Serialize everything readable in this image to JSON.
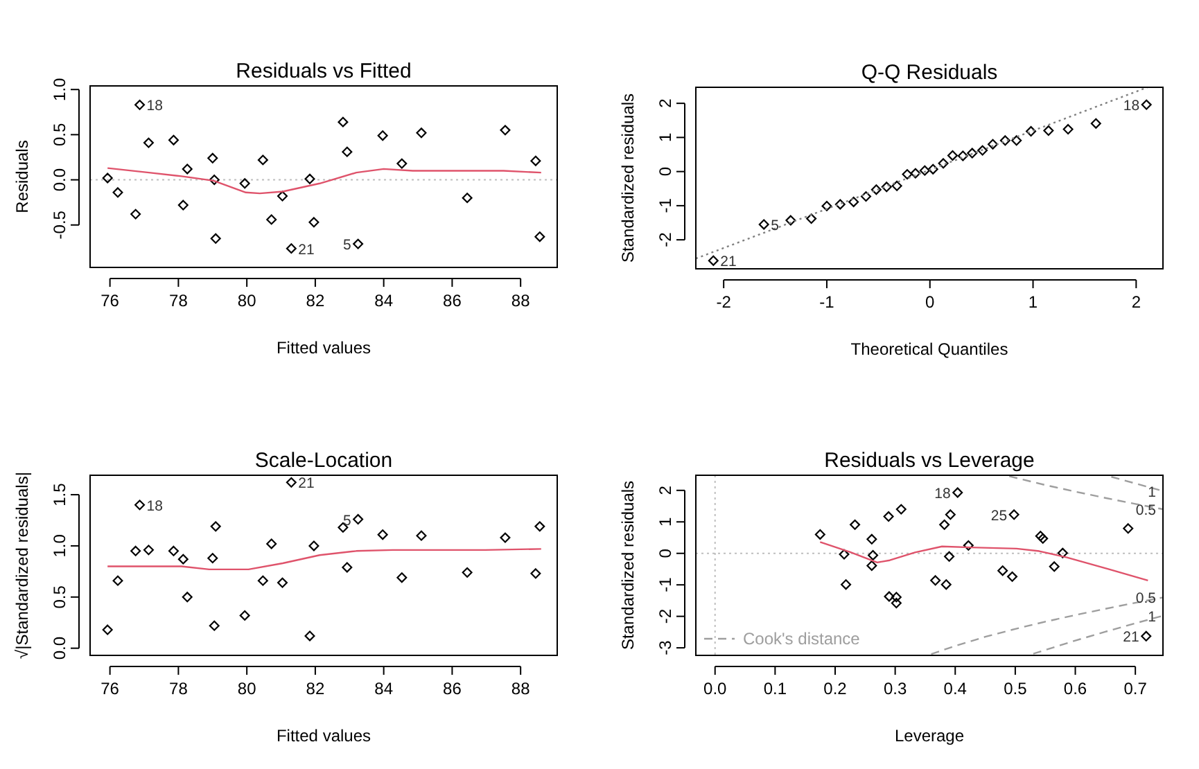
{
  "chart_data": [
    {
      "type": "scatter",
      "title": "Residuals vs Fitted",
      "xlabel": "Fitted values",
      "ylabel": "Residuals",
      "xlim": [
        75.42,
        89.07
      ],
      "ylim": [
        -0.97,
        1.04
      ],
      "xticks": [
        76,
        78,
        80,
        82,
        84,
        86,
        88
      ],
      "yticks": [
        {
          "value": -0.5,
          "label": "-0.5"
        },
        {
          "value": 0,
          "label": "0.0"
        },
        {
          "value": 0.5,
          "label": "0.5"
        },
        {
          "value": 1,
          "label": "1.0"
        }
      ],
      "series": [
        {
          "type": "scatter",
          "marker": "diamond",
          "color": "#000000",
          "x": [
            75.93,
            76.23,
            76.75,
            76.87,
            77.13,
            77.86,
            78.14,
            78.26,
            79.0,
            79.05,
            79.09,
            79.94,
            80.47,
            80.72,
            81.04,
            81.3,
            81.84,
            81.96,
            82.81,
            82.93,
            83.25,
            83.97,
            84.53,
            85.1,
            86.44,
            87.55,
            88.44,
            88.56
          ],
          "values": [
            0.02,
            -0.14,
            -0.38,
            0.83,
            0.41,
            0.44,
            -0.28,
            0.12,
            0.24,
            0.0,
            -0.65,
            -0.04,
            0.22,
            -0.44,
            -0.18,
            -0.76,
            0.01,
            -0.47,
            0.64,
            0.31,
            -0.71,
            0.49,
            0.18,
            0.52,
            -0.2,
            0.55,
            0.21,
            -0.63
          ]
        },
        {
          "type": "line",
          "marker": "none",
          "line_style": "solid",
          "color": "#df536b",
          "x": [
            75.93,
            77.14,
            78.09,
            79.03,
            79.97,
            80.38,
            81.05,
            82.13,
            83.2,
            84.0,
            84.85,
            86.2,
            87.5,
            88.6
          ],
          "values": [
            0.13,
            0.08,
            0.04,
            -0.01,
            -0.14,
            -0.15,
            -0.13,
            -0.04,
            0.08,
            0.12,
            0.1,
            0.1,
            0.1,
            0.08
          ]
        }
      ],
      "ref_lines": [
        {
          "axis": "y",
          "value": 0,
          "color": "#bebebe",
          "line_style": "dotted"
        }
      ],
      "annotations": [
        {
          "text": "18",
          "x": 76.87,
          "y": 0.83
        },
        {
          "text": "21",
          "x": 81.3,
          "y": -0.76
        },
        {
          "text": "5",
          "x": 83.25,
          "y": -0.71
        }
      ]
    },
    {
      "type": "scatter",
      "title": "Q-Q Residuals",
      "xlabel": "Theoretical Quantiles",
      "ylabel": "Standardized residuals",
      "xlim": [
        -2.27,
        2.26
      ],
      "ylim": [
        -2.85,
        2.47
      ],
      "xticks": [
        -2,
        -1,
        0,
        1,
        2
      ],
      "yticks": [
        -2,
        -1,
        0,
        1,
        2
      ],
      "series": [
        {
          "type": "scatter",
          "marker": "diamond",
          "color": "#000000",
          "x": [
            -2.1,
            -1.61,
            -1.35,
            -1.15,
            -1.0,
            -0.87,
            -0.74,
            -0.62,
            -0.52,
            -0.42,
            -0.32,
            -0.22,
            -0.14,
            -0.05,
            0.03,
            0.13,
            0.22,
            0.32,
            0.41,
            0.51,
            0.61,
            0.73,
            0.84,
            0.98,
            1.15,
            1.34,
            1.61,
            2.1
          ],
          "values": [
            -2.61,
            -1.55,
            -1.43,
            -1.38,
            -1.01,
            -0.96,
            -0.89,
            -0.73,
            -0.53,
            -0.45,
            -0.42,
            -0.08,
            -0.05,
            0.03,
            0.07,
            0.24,
            0.47,
            0.46,
            0.54,
            0.62,
            0.8,
            0.91,
            0.91,
            1.18,
            1.2,
            1.24,
            1.41,
            1.96
          ]
        },
        {
          "type": "line",
          "marker": "none",
          "line_style": "dotted",
          "color": "#808080",
          "x": [
            -2.27,
            2.11
          ],
          "values": [
            -2.55,
            2.47
          ]
        }
      ],
      "annotations": [
        {
          "text": "21",
          "x": -2.1,
          "y": -2.61
        },
        {
          "text": "5",
          "x": -1.61,
          "y": -1.55
        },
        {
          "text": "18",
          "x": 2.1,
          "y": 1.96
        }
      ]
    },
    {
      "type": "scatter",
      "title": "Scale-Location",
      "xlabel": "Fitted values",
      "ylabel": "√|Standardized residuals|",
      "xlim": [
        75.42,
        89.07
      ],
      "ylim": [
        -0.07,
        1.69
      ],
      "xticks": [
        76,
        78,
        80,
        82,
        84,
        86,
        88
      ],
      "yticks": [
        {
          "value": 0,
          "label": "0.0"
        },
        {
          "value": 0.5,
          "label": "0.5"
        },
        {
          "value": 1,
          "label": "1.0"
        },
        {
          "value": 1.5,
          "label": "1.5"
        }
      ],
      "series": [
        {
          "type": "scatter",
          "marker": "diamond",
          "color": "#000000",
          "x": [
            75.93,
            76.23,
            76.75,
            76.87,
            77.13,
            77.86,
            78.14,
            78.26,
            79.0,
            79.05,
            79.09,
            79.94,
            80.47,
            80.72,
            81.04,
            81.3,
            81.84,
            81.96,
            82.81,
            82.93,
            83.25,
            83.97,
            84.53,
            85.1,
            86.44,
            87.55,
            88.44,
            88.56
          ],
          "values": [
            0.18,
            0.66,
            0.95,
            1.4,
            0.96,
            0.95,
            0.87,
            0.5,
            0.88,
            0.22,
            1.19,
            0.32,
            0.66,
            1.02,
            0.64,
            1.62,
            0.12,
            1.0,
            1.18,
            0.79,
            1.26,
            1.11,
            0.69,
            1.1,
            0.74,
            1.08,
            0.73,
            1.19
          ]
        },
        {
          "type": "line",
          "marker": "none",
          "line_style": "solid",
          "color": "#df536b",
          "x": [
            75.93,
            78.09,
            78.9,
            80.05,
            81.05,
            82.13,
            83.2,
            84.27,
            86.97,
            88.6
          ],
          "values": [
            0.8,
            0.8,
            0.77,
            0.77,
            0.83,
            0.91,
            0.95,
            0.96,
            0.96,
            0.97
          ]
        }
      ],
      "annotations": [
        {
          "text": "18",
          "x": 76.87,
          "y": 1.4
        },
        {
          "text": "21",
          "x": 81.3,
          "y": 1.62
        },
        {
          "text": "5",
          "x": 83.25,
          "y": 1.26
        }
      ]
    },
    {
      "type": "scatter",
      "title": "Residuals vs Leverage",
      "xlabel": "Leverage",
      "ylabel": "Standardized residuals",
      "xlim": [
        -0.032,
        0.746
      ],
      "ylim": [
        -3.24,
        2.48
      ],
      "xticks": [
        {
          "value": 0,
          "label": "0.0"
        },
        {
          "value": 0.1,
          "label": "0.1"
        },
        {
          "value": 0.2,
          "label": "0.2"
        },
        {
          "value": 0.3,
          "label": "0.3"
        },
        {
          "value": 0.4,
          "label": "0.4"
        },
        {
          "value": 0.5,
          "label": "0.5"
        },
        {
          "value": 0.6,
          "label": "0.6"
        },
        {
          "value": 0.7,
          "label": "0.7"
        }
      ],
      "yticks": [
        -3,
        -2,
        -1,
        0,
        1,
        2
      ],
      "legend": "bottom left",
      "series": [
        {
          "type": "scatter",
          "marker": "diamond",
          "color": "#000000",
          "x": [
            0.175,
            0.215,
            0.218,
            0.233,
            0.261,
            0.263,
            0.261,
            0.289,
            0.31,
            0.29,
            0.302,
            0.302,
            0.367,
            0.382,
            0.385,
            0.392,
            0.39,
            0.404,
            0.422,
            0.479,
            0.495,
            0.498,
            0.542,
            0.546,
            0.565,
            0.579,
            0.688,
            0.718
          ],
          "values": [
            0.6,
            -0.03,
            -0.99,
            0.91,
            0.45,
            -0.06,
            -0.39,
            1.17,
            1.4,
            -1.37,
            -1.39,
            -1.58,
            -0.86,
            0.91,
            -0.99,
            1.23,
            -0.1,
            1.93,
            0.25,
            -0.55,
            -0.74,
            1.23,
            0.55,
            0.47,
            -0.42,
            0.01,
            0.79,
            -2.63
          ]
        },
        {
          "type": "line",
          "marker": "none",
          "line_style": "solid",
          "color": "#df536b",
          "x": [
            0.175,
            0.225,
            0.27,
            0.291,
            0.333,
            0.378,
            0.425,
            0.502,
            0.54,
            0.586,
            0.655,
            0.721
          ],
          "values": [
            0.36,
            0.04,
            -0.29,
            -0.22,
            0.03,
            0.22,
            0.19,
            0.15,
            0.07,
            -0.13,
            -0.5,
            -0.86
          ]
        },
        {
          "type": "line",
          "name": "Cook's distance",
          "marker": "none",
          "line_style": "dashed",
          "color": "#9e9e9e",
          "x": [
            0.49,
            0.55,
            0.6,
            0.65,
            0.7,
            0.746
          ],
          "values": [
            2.45,
            2.17,
            1.96,
            1.76,
            1.57,
            1.4
          ]
        },
        {
          "type": "line",
          "marker": "none",
          "line_style": "dashed",
          "color": "#9e9e9e",
          "x": [
            0.66,
            0.7,
            0.746
          ],
          "values": [
            2.43,
            2.22,
            1.98
          ]
        },
        {
          "type": "line",
          "marker": "none",
          "line_style": "dashed",
          "color": "#9e9e9e",
          "x": [
            0.36,
            0.4,
            0.45,
            0.5,
            0.55,
            0.6,
            0.65,
            0.7,
            0.746
          ],
          "values": [
            -3.2,
            -2.94,
            -2.65,
            -2.4,
            -2.17,
            -1.96,
            -1.76,
            -1.57,
            -1.4
          ]
        },
        {
          "type": "line",
          "marker": "none",
          "line_style": "dashed",
          "color": "#9e9e9e",
          "x": [
            0.53,
            0.55,
            0.6,
            0.65,
            0.7,
            0.746
          ],
          "values": [
            -3.19,
            -3.07,
            -2.77,
            -2.49,
            -2.22,
            -1.98
          ]
        }
      ],
      "ref_lines": [
        {
          "axis": "y",
          "value": 0,
          "color": "#bebebe",
          "line_style": "dotted"
        },
        {
          "axis": "x",
          "value": 0,
          "color": "#bebebe",
          "line_style": "dotted"
        }
      ],
      "annotations": [
        {
          "text": "18",
          "x": 0.404,
          "y": 1.93
        },
        {
          "text": "25",
          "x": 0.498,
          "y": 1.23
        },
        {
          "text": "21",
          "x": 0.718,
          "y": -2.63
        },
        {
          "text": "1",
          "x": 0.746,
          "y": 1.98
        },
        {
          "text": "0.5",
          "x": 0.746,
          "y": 1.4
        },
        {
          "text": "0.5",
          "x": 0.746,
          "y": -1.4
        },
        {
          "text": "1",
          "x": 0.746,
          "y": -1.98
        }
      ]
    }
  ]
}
